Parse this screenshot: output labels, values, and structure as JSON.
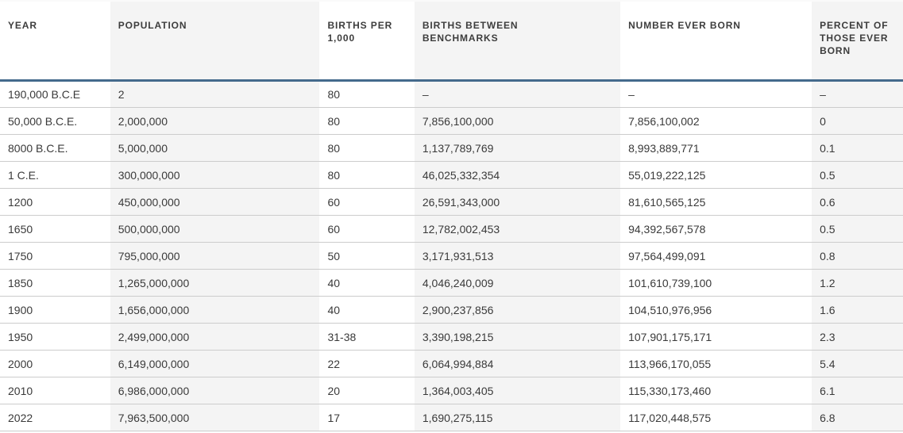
{
  "table": {
    "columns": [
      {
        "id": "year",
        "label": "YEAR",
        "lines": [
          "YEAR"
        ]
      },
      {
        "id": "population",
        "label": "POPULATION",
        "lines": [
          "POPULATION"
        ]
      },
      {
        "id": "births-per-1000",
        "label": "BIRTHS PER 1,000",
        "lines": [
          "BIRTHS PER",
          "1,000"
        ]
      },
      {
        "id": "births-between-benchmarks",
        "label": "BIRTHS BETWEEN BENCHMARKS",
        "lines": [
          "BIRTHS BETWEEN",
          "BENCHMARKS"
        ]
      },
      {
        "id": "number-ever-born",
        "label": "NUMBER EVER BORN",
        "lines": [
          "NUMBER EVER BORN"
        ]
      },
      {
        "id": "percent-of-those-ever-born",
        "label": "PERCENT OF THOSE EVER BORN",
        "lines": [
          "PERCENT OF",
          "THOSE EVER",
          "BORN"
        ]
      }
    ],
    "rows": [
      [
        "190,000 B.C.E",
        "2",
        "80",
        "–",
        "–",
        "–"
      ],
      [
        "50,000 B.C.E.",
        "2,000,000",
        "80",
        "7,856,100,000",
        "7,856,100,002",
        "0"
      ],
      [
        "8000 B.C.E.",
        "5,000,000",
        "80",
        "1,137,789,769",
        "8,993,889,771",
        "0.1"
      ],
      [
        "1 C.E.",
        "300,000,000",
        "80",
        "46,025,332,354",
        "55,019,222,125",
        "0.5"
      ],
      [
        "1200",
        "450,000,000",
        "60",
        "26,591,343,000",
        "81,610,565,125",
        "0.6"
      ],
      [
        "1650",
        "500,000,000",
        "60",
        "12,782,002,453",
        "94,392,567,578",
        "0.5"
      ],
      [
        "1750",
        "795,000,000",
        "50",
        "3,171,931,513",
        "97,564,499,091",
        "0.8"
      ],
      [
        "1850",
        "1,265,000,000",
        "40",
        "4,046,240,009",
        "101,610,739,100",
        "1.2"
      ],
      [
        "1900",
        "1,656,000,000",
        "40",
        "2,900,237,856",
        "104,510,976,956",
        "1.6"
      ],
      [
        "1950",
        "2,499,000,000",
        "31-38",
        "3,390,198,215",
        "107,901,175,171",
        "2.3"
      ],
      [
        "2000",
        "6,149,000,000",
        "22",
        "6,064,994,884",
        "113,966,170,055",
        "5.4"
      ],
      [
        "2010",
        "6,986,000,000",
        "20",
        "1,364,003,405",
        "115,330,173,460",
        "6.1"
      ],
      [
        "2022",
        "7,963,500,000",
        "17",
        "1,690,275,115",
        "117,020,448,575",
        "6.8"
      ]
    ]
  },
  "chart_data": {
    "type": "table",
    "title": "",
    "columns": [
      "YEAR",
      "POPULATION",
      "BIRTHS PER 1,000",
      "BIRTHS BETWEEN BENCHMARKS",
      "NUMBER EVER BORN",
      "PERCENT OF THOSE EVER BORN"
    ],
    "rows": [
      [
        "190,000 B.C.E",
        "2",
        "80",
        "–",
        "–",
        "–"
      ],
      [
        "50,000 B.C.E.",
        "2,000,000",
        "80",
        "7,856,100,000",
        "7,856,100,002",
        "0"
      ],
      [
        "8000 B.C.E.",
        "5,000,000",
        "80",
        "1,137,789,769",
        "8,993,889,771",
        "0.1"
      ],
      [
        "1 C.E.",
        "300,000,000",
        "80",
        "46,025,332,354",
        "55,019,222,125",
        "0.5"
      ],
      [
        "1200",
        "450,000,000",
        "60",
        "26,591,343,000",
        "81,610,565,125",
        "0.6"
      ],
      [
        "1650",
        "500,000,000",
        "60",
        "12,782,002,453",
        "94,392,567,578",
        "0.5"
      ],
      [
        "1750",
        "795,000,000",
        "50",
        "3,171,931,513",
        "97,564,499,091",
        "0.8"
      ],
      [
        "1850",
        "1,265,000,000",
        "40",
        "4,046,240,009",
        "101,610,739,100",
        "1.2"
      ],
      [
        "1900",
        "1,656,000,000",
        "40",
        "2,900,237,856",
        "104,510,976,956",
        "1.6"
      ],
      [
        "1950",
        "2,499,000,000",
        "31-38",
        "3,390,198,215",
        "107,901,175,171",
        "2.3"
      ],
      [
        "2000",
        "6,149,000,000",
        "22",
        "6,064,994,884",
        "113,966,170,055",
        "5.4"
      ],
      [
        "2010",
        "6,986,000,000",
        "20",
        "1,364,003,405",
        "115,330,173,460",
        "6.1"
      ],
      [
        "2022",
        "7,963,500,000",
        "17",
        "1,690,275,115",
        "117,020,448,575",
        "6.8"
      ]
    ]
  },
  "colors": {
    "header_rule": "#446a8c",
    "row_divider": "#cccccc",
    "column_stripe": "#f4f4f4",
    "header_text": "#3d3d3d",
    "body_text": "#3a3a3a",
    "background": "#ffffff"
  },
  "layout": {
    "striped_column_indices": [
      1,
      3,
      5
    ],
    "column_widths_pct": [
      12.2,
      23.2,
      10.5,
      22.8,
      21.2,
      10.1
    ]
  }
}
